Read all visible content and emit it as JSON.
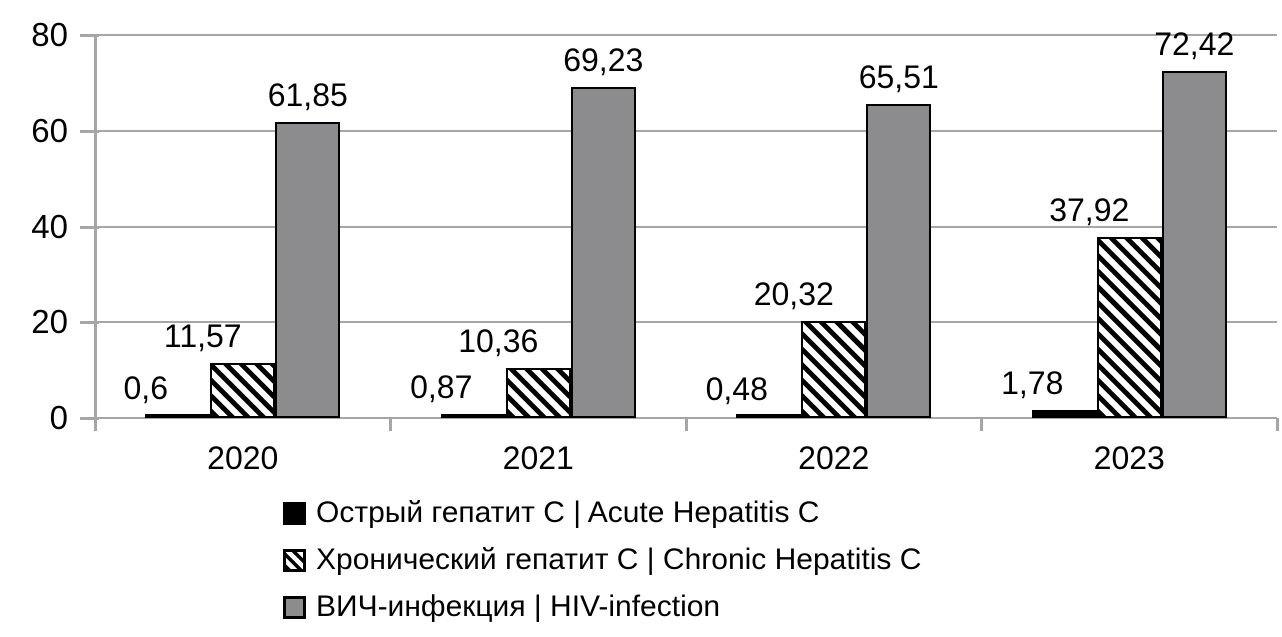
{
  "chart_data": {
    "type": "bar",
    "title": "",
    "categories": [
      "2020",
      "2021",
      "2022",
      "2023"
    ],
    "series": [
      {
        "name": "Острый гепатит C | Acute Hepatitis C",
        "key": "acute-hepatitis-c",
        "style": "solid-black",
        "values": [
          0.6,
          0.87,
          0.48,
          1.78
        ],
        "labels": [
          "0,6",
          "0,87",
          "0,48",
          "1,78"
        ]
      },
      {
        "name": "Хронический гепатит C | Chronic Hepatitis C",
        "key": "chronic-hepatitis-c",
        "style": "diagonal-hatch",
        "values": [
          11.57,
          10.36,
          20.32,
          37.92
        ],
        "labels": [
          "11,57",
          "10,36",
          "20,32",
          "37,92"
        ]
      },
      {
        "name": "ВИЧ-инфекция | HIV-infection",
        "key": "hiv-infection",
        "style": "solid-gray",
        "values": [
          61.85,
          69.23,
          65.51,
          72.42
        ],
        "labels": [
          "61,85",
          "69,23",
          "65,51",
          "72,42"
        ]
      }
    ],
    "ylim": [
      0,
      80
    ],
    "yticks": [
      "0",
      "20",
      "40",
      "60",
      "80"
    ],
    "grid": true,
    "legend_position": "bottom",
    "decimal_separator": ","
  },
  "colors": {
    "background": "#ffffff",
    "text": "#000000",
    "gridline": "#a6a6a6",
    "axis": "#a6a6a6",
    "bar_border": "#000000",
    "gray_fill": "#8c8c8f",
    "black_fill": "#000000",
    "hatch_foreground": "#000000",
    "hatch_background": "#ffffff"
  }
}
